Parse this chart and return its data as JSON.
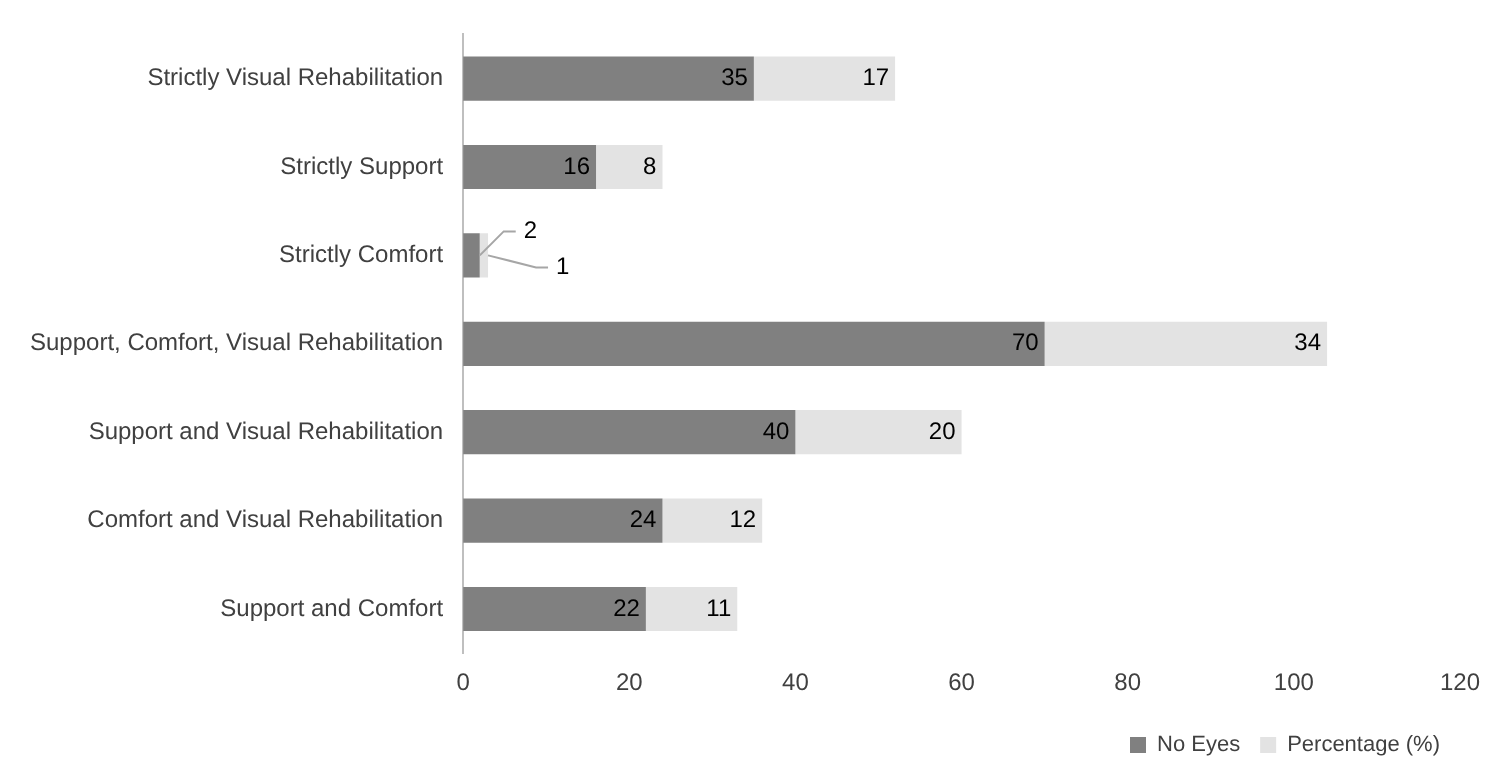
{
  "chart_data": {
    "type": "bar",
    "orientation": "horizontal",
    "stacked": true,
    "categories": [
      "Strictly Visual Rehabilitation",
      "Strictly Support",
      "Strictly Comfort",
      "Support, Comfort, Visual Rehabilitation",
      "Support and Visual Rehabilitation",
      "Comfort and Visual Rehabilitation",
      "Support and Comfort"
    ],
    "series": [
      {
        "name": "No Eyes",
        "color": "#808080",
        "values": [
          35,
          16,
          2,
          70,
          40,
          24,
          22
        ]
      },
      {
        "name": "Percentage (%)",
        "color": "#e3e3e3",
        "values": [
          17,
          8,
          1,
          34,
          20,
          12,
          11
        ]
      }
    ],
    "xlim": [
      0,
      120
    ],
    "xticks": [
      0,
      20,
      40,
      60,
      80,
      100,
      120
    ],
    "grid": false,
    "legend": "bottom right",
    "data_labels": true
  }
}
